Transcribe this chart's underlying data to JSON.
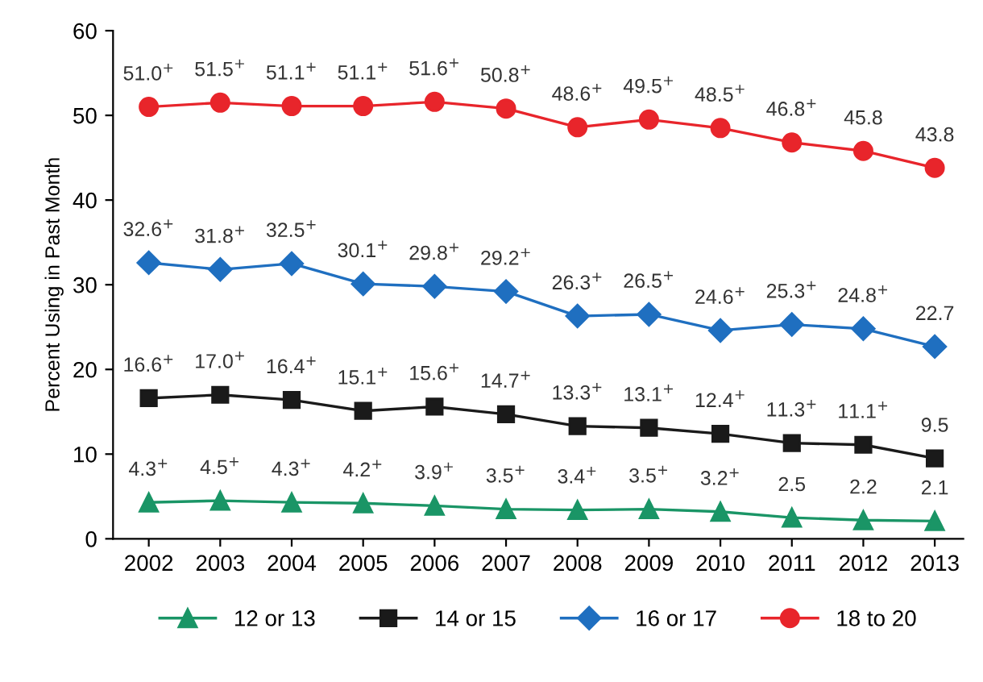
{
  "chart_data": {
    "type": "line",
    "ylabel": "Percent Using in Past Month",
    "categories": [
      "2002",
      "2003",
      "2004",
      "2005",
      "2006",
      "2007",
      "2008",
      "2009",
      "2010",
      "2011",
      "2012",
      "2013"
    ],
    "ylim": [
      0,
      60
    ],
    "yticks": [
      0,
      10,
      20,
      30,
      40,
      50,
      60
    ],
    "grid": false,
    "legend": "bottom",
    "line_style": "solid",
    "series": [
      {
        "name": "12 or 13",
        "color": "#1a9566",
        "marker": "triangle",
        "values": [
          4.3,
          4.5,
          4.3,
          4.2,
          3.9,
          3.5,
          3.4,
          3.5,
          3.2,
          2.5,
          2.2,
          2.1
        ],
        "value_labels": [
          "4.3$^{+}$",
          "4.5$^{+}$",
          "4.3$^{+}$",
          "4.2$^{+}$",
          "3.9$^{+}$",
          "3.5$^{+}$",
          "3.4$^{+}$",
          "3.5$^{+}$",
          "3.2$^{+}$",
          "2.5",
          "2.2",
          "2.1"
        ]
      },
      {
        "name": "14 or 15",
        "color": "#1a1a1a",
        "marker": "square",
        "values": [
          16.6,
          17.0,
          16.4,
          15.1,
          15.6,
          14.7,
          13.3,
          13.1,
          12.4,
          11.3,
          11.1,
          9.5
        ],
        "value_labels": [
          "16.6$^{+}$",
          "17.0$^{+}$",
          "16.4$^{+}$",
          "15.1$^{+}$",
          "15.6$^{+}$",
          "14.7$^{+}$",
          "13.3$^{+}$",
          "13.1$^{+}$",
          "12.4$^{+}$",
          "11.3$^{+}$",
          "11.1$^{+}$",
          "9.5"
        ]
      },
      {
        "name": "16 or 17",
        "color": "#1f6fc0",
        "marker": "diamond",
        "values": [
          32.6,
          31.8,
          32.5,
          30.1,
          29.8,
          29.2,
          26.3,
          26.5,
          24.6,
          25.3,
          24.8,
          22.7
        ],
        "value_labels": [
          "32.6$^{+}$",
          "31.8$^{+}$",
          "32.5$^{+}$",
          "30.1$^{+}$",
          "29.8$^{+}$",
          "29.2$^{+}$",
          "26.3$^{+}$",
          "26.5$^{+}$",
          "24.6$^{+}$",
          "25.3$^{+}$",
          "24.8$^{+}$",
          "22.7"
        ]
      },
      {
        "name": "18 to 20",
        "color": "#e8252b",
        "marker": "circle",
        "values": [
          51.0,
          51.5,
          51.1,
          51.1,
          51.6,
          50.8,
          48.6,
          49.5,
          48.5,
          46.8,
          45.8,
          43.8
        ],
        "value_labels": [
          "51.0$^{+}$",
          "51.5$^{+}$",
          "51.1$^{+}$",
          "51.1$^{+}$",
          "51.6$^{+}$",
          "50.8$^{+}$",
          "48.6$^{+}$",
          "49.5$^{+}$",
          "48.5$^{+}$",
          "46.8$^{+}$",
          "45.8",
          "43.8"
        ]
      }
    ]
  }
}
